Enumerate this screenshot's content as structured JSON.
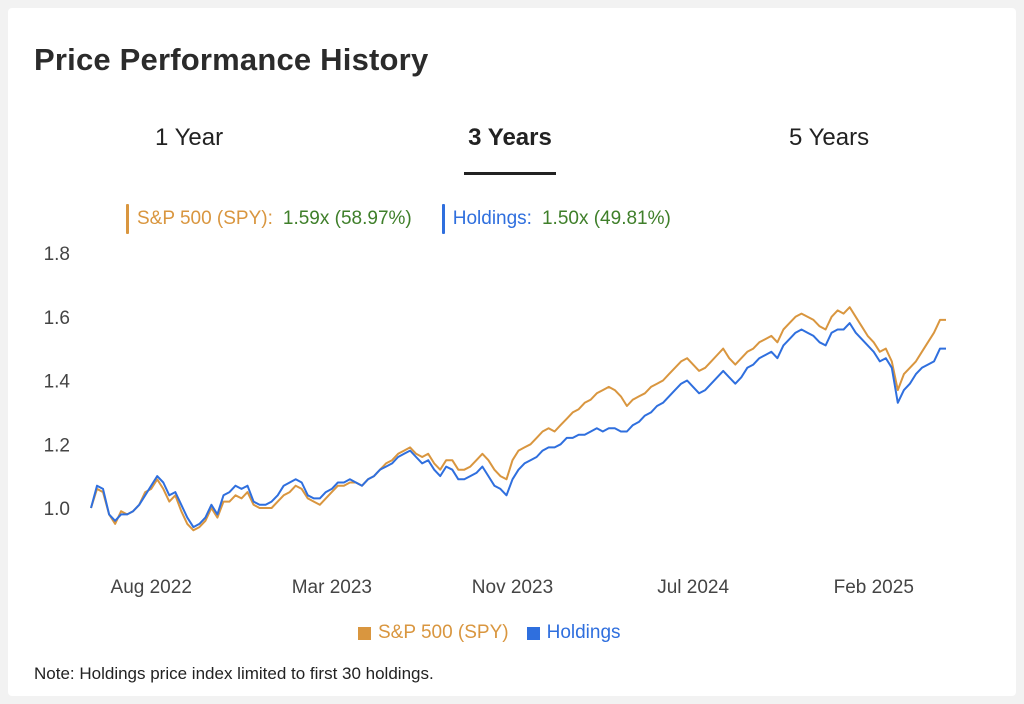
{
  "title": "Price Performance History",
  "tabs": [
    {
      "label": "1 Year",
      "active": false
    },
    {
      "label": "3 Years",
      "active": true
    },
    {
      "label": "5 Years",
      "active": false
    }
  ],
  "summary": [
    {
      "name": "S&P 500 (SPY):",
      "value": "1.59x (58.97%)",
      "color": "#d9963f"
    },
    {
      "name": "Holdings:",
      "value": "1.50x (49.81%)",
      "color": "#2f6fde"
    }
  ],
  "value_color": "#3f7f2a",
  "note": "Note: Holdings price index limited to first 30 holdings.",
  "chart_data": {
    "type": "line",
    "ylim": [
      0.9,
      1.8
    ],
    "yticks": [
      "1.0",
      "1.2",
      "1.4",
      "1.6",
      "1.8"
    ],
    "ytick_values": [
      1.0,
      1.2,
      1.4,
      1.6,
      1.8
    ],
    "xtick_labels": [
      "Aug 2022",
      "Mar 2023",
      "Nov 2023",
      "Jul 2024",
      "Feb 2025"
    ],
    "xtick_index": [
      10,
      40,
      70,
      100,
      130
    ],
    "legend": [
      "S&P 500 (SPY)",
      "Holdings"
    ],
    "series": [
      {
        "name": "S&P 500 (SPY)",
        "color": "#d9963f",
        "values": [
          1.0,
          1.06,
          1.05,
          0.98,
          0.95,
          0.99,
          0.98,
          0.99,
          1.01,
          1.05,
          1.06,
          1.09,
          1.06,
          1.02,
          1.04,
          0.99,
          0.95,
          0.93,
          0.94,
          0.96,
          1.0,
          0.97,
          1.02,
          1.02,
          1.04,
          1.03,
          1.05,
          1.01,
          1.0,
          1.0,
          1.0,
          1.02,
          1.04,
          1.05,
          1.07,
          1.06,
          1.03,
          1.02,
          1.01,
          1.03,
          1.05,
          1.07,
          1.07,
          1.08,
          1.08,
          1.07,
          1.09,
          1.1,
          1.12,
          1.14,
          1.15,
          1.17,
          1.18,
          1.19,
          1.17,
          1.16,
          1.17,
          1.14,
          1.12,
          1.15,
          1.15,
          1.12,
          1.12,
          1.13,
          1.15,
          1.17,
          1.15,
          1.12,
          1.1,
          1.09,
          1.15,
          1.18,
          1.19,
          1.2,
          1.22,
          1.24,
          1.25,
          1.24,
          1.26,
          1.28,
          1.3,
          1.31,
          1.33,
          1.34,
          1.36,
          1.37,
          1.38,
          1.37,
          1.35,
          1.32,
          1.34,
          1.35,
          1.36,
          1.38,
          1.39,
          1.4,
          1.42,
          1.44,
          1.46,
          1.47,
          1.45,
          1.43,
          1.44,
          1.46,
          1.48,
          1.5,
          1.47,
          1.45,
          1.47,
          1.49,
          1.5,
          1.52,
          1.53,
          1.54,
          1.52,
          1.56,
          1.58,
          1.6,
          1.61,
          1.6,
          1.59,
          1.57,
          1.56,
          1.6,
          1.62,
          1.61,
          1.63,
          1.6,
          1.57,
          1.54,
          1.52,
          1.49,
          1.5,
          1.46,
          1.37,
          1.42,
          1.44,
          1.46,
          1.49,
          1.52,
          1.55,
          1.59,
          1.59
        ]
      },
      {
        "name": "Holdings",
        "color": "#2f6fde",
        "values": [
          1.0,
          1.07,
          1.06,
          0.98,
          0.96,
          0.98,
          0.98,
          0.99,
          1.01,
          1.04,
          1.07,
          1.1,
          1.08,
          1.04,
          1.05,
          1.01,
          0.97,
          0.94,
          0.95,
          0.97,
          1.01,
          0.98,
          1.04,
          1.05,
          1.07,
          1.06,
          1.07,
          1.02,
          1.01,
          1.01,
          1.02,
          1.04,
          1.07,
          1.08,
          1.09,
          1.08,
          1.04,
          1.03,
          1.03,
          1.05,
          1.06,
          1.08,
          1.08,
          1.09,
          1.08,
          1.07,
          1.09,
          1.1,
          1.12,
          1.13,
          1.14,
          1.16,
          1.17,
          1.18,
          1.16,
          1.14,
          1.15,
          1.12,
          1.1,
          1.13,
          1.12,
          1.09,
          1.09,
          1.1,
          1.11,
          1.13,
          1.1,
          1.07,
          1.06,
          1.04,
          1.09,
          1.12,
          1.14,
          1.15,
          1.16,
          1.18,
          1.19,
          1.19,
          1.2,
          1.22,
          1.22,
          1.23,
          1.23,
          1.24,
          1.25,
          1.24,
          1.25,
          1.25,
          1.24,
          1.24,
          1.26,
          1.27,
          1.29,
          1.3,
          1.32,
          1.33,
          1.35,
          1.37,
          1.39,
          1.4,
          1.38,
          1.36,
          1.37,
          1.39,
          1.41,
          1.43,
          1.41,
          1.39,
          1.41,
          1.44,
          1.45,
          1.47,
          1.48,
          1.49,
          1.47,
          1.51,
          1.53,
          1.55,
          1.56,
          1.55,
          1.54,
          1.52,
          1.51,
          1.55,
          1.56,
          1.56,
          1.58,
          1.55,
          1.53,
          1.51,
          1.49,
          1.46,
          1.47,
          1.44,
          1.33,
          1.37,
          1.39,
          1.42,
          1.44,
          1.45,
          1.46,
          1.5,
          1.5
        ]
      }
    ]
  }
}
